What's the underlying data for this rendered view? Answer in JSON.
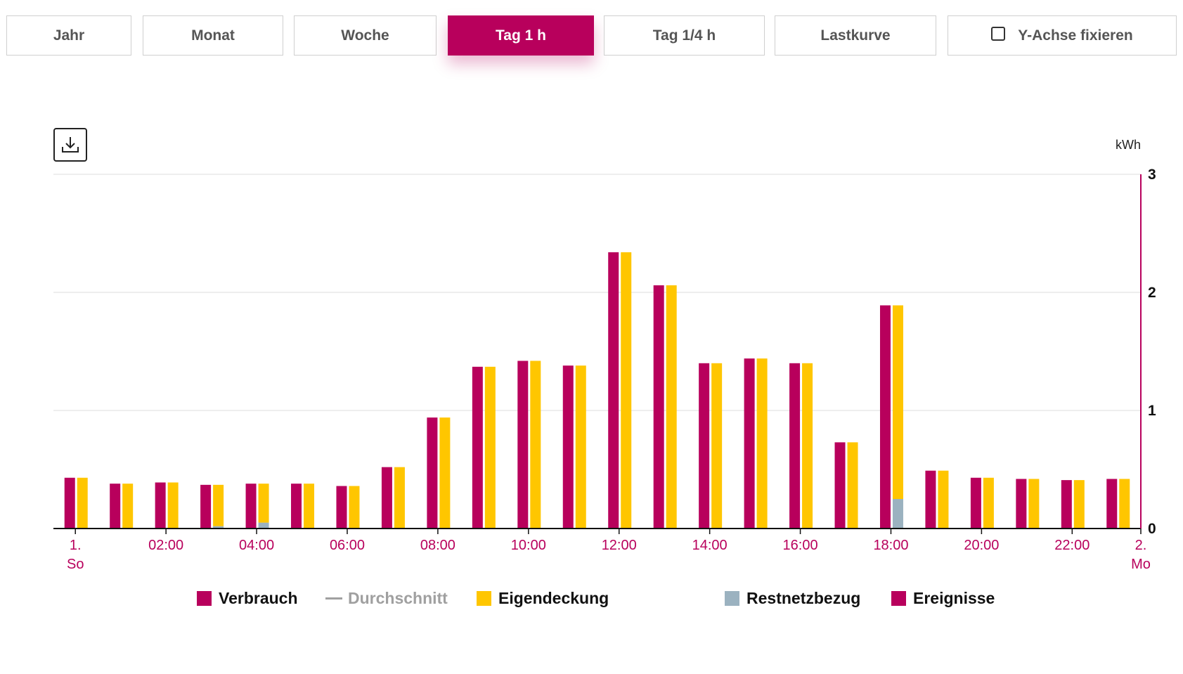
{
  "tabs": [
    {
      "label": "Jahr"
    },
    {
      "label": "Monat"
    },
    {
      "label": "Woche"
    },
    {
      "label": "Tag 1 h",
      "active": true
    },
    {
      "label": "Tag 1/4 h"
    },
    {
      "label": "Lastkurve"
    },
    {
      "label": "Y-Achse fixieren",
      "checkbox": false
    }
  ],
  "toolbar": {
    "download_icon": "download-icon"
  },
  "colors": {
    "verbrauch": "#b8005c",
    "eigendeckung": "#ffc600",
    "restnetzbezug": "#9bb2c0",
    "durchschnitt": "#a0a0a0",
    "ereignisse": "#b8005c",
    "axis_label": "#b8005c"
  },
  "legend": [
    {
      "label": "Verbrauch",
      "type": "square",
      "color": "#b8005c"
    },
    {
      "label": "Durchschnitt",
      "type": "line",
      "color": "#a0a0a0",
      "muted": true
    },
    {
      "label": "Eigendeckung",
      "type": "square",
      "color": "#ffc600"
    },
    {
      "label": "Restnetzbezug",
      "type": "square",
      "color": "#9bb2c0"
    },
    {
      "label": "Ereignisse",
      "type": "square",
      "color": "#b8005c"
    }
  ],
  "chart_data": {
    "type": "bar",
    "unit": "kWh",
    "ylim": [
      0,
      3
    ],
    "yticks": [
      0,
      1,
      2,
      3
    ],
    "grid": true,
    "legend_position": "bottom",
    "x_start_label": [
      "1.",
      "So"
    ],
    "x_end_label": [
      "2.",
      "Mo"
    ],
    "xtick_labels": [
      "02:00",
      "04:00",
      "06:00",
      "08:00",
      "10:00",
      "12:00",
      "14:00",
      "16:00",
      "18:00",
      "20:00",
      "22:00"
    ],
    "hours": [
      0,
      1,
      2,
      3,
      4,
      5,
      6,
      7,
      8,
      9,
      10,
      11,
      12,
      13,
      14,
      15,
      16,
      17,
      18,
      19,
      20,
      21,
      22,
      23
    ],
    "series": [
      {
        "name": "Verbrauch",
        "values": [
          0.43,
          0.38,
          0.39,
          0.37,
          0.38,
          0.38,
          0.36,
          0.52,
          0.94,
          1.37,
          1.42,
          1.38,
          2.34,
          2.06,
          1.4,
          1.44,
          1.4,
          0.73,
          1.89,
          0.49,
          0.43,
          0.42,
          0.41,
          0.42
        ]
      },
      {
        "name": "Eigendeckung",
        "values": [
          0.43,
          0.38,
          0.39,
          0.35,
          0.33,
          0.38,
          0.36,
          0.52,
          0.94,
          1.37,
          1.42,
          1.38,
          2.34,
          2.06,
          1.4,
          1.44,
          1.4,
          0.73,
          1.64,
          0.49,
          0.43,
          0.42,
          0.41,
          0.42
        ]
      },
      {
        "name": "Restnetzbezug",
        "values": [
          0,
          0,
          0,
          0.02,
          0.05,
          0,
          0,
          0,
          0,
          0,
          0,
          0,
          0,
          0,
          0,
          0,
          0,
          0,
          0.25,
          0,
          0,
          0,
          0,
          0
        ]
      }
    ]
  }
}
